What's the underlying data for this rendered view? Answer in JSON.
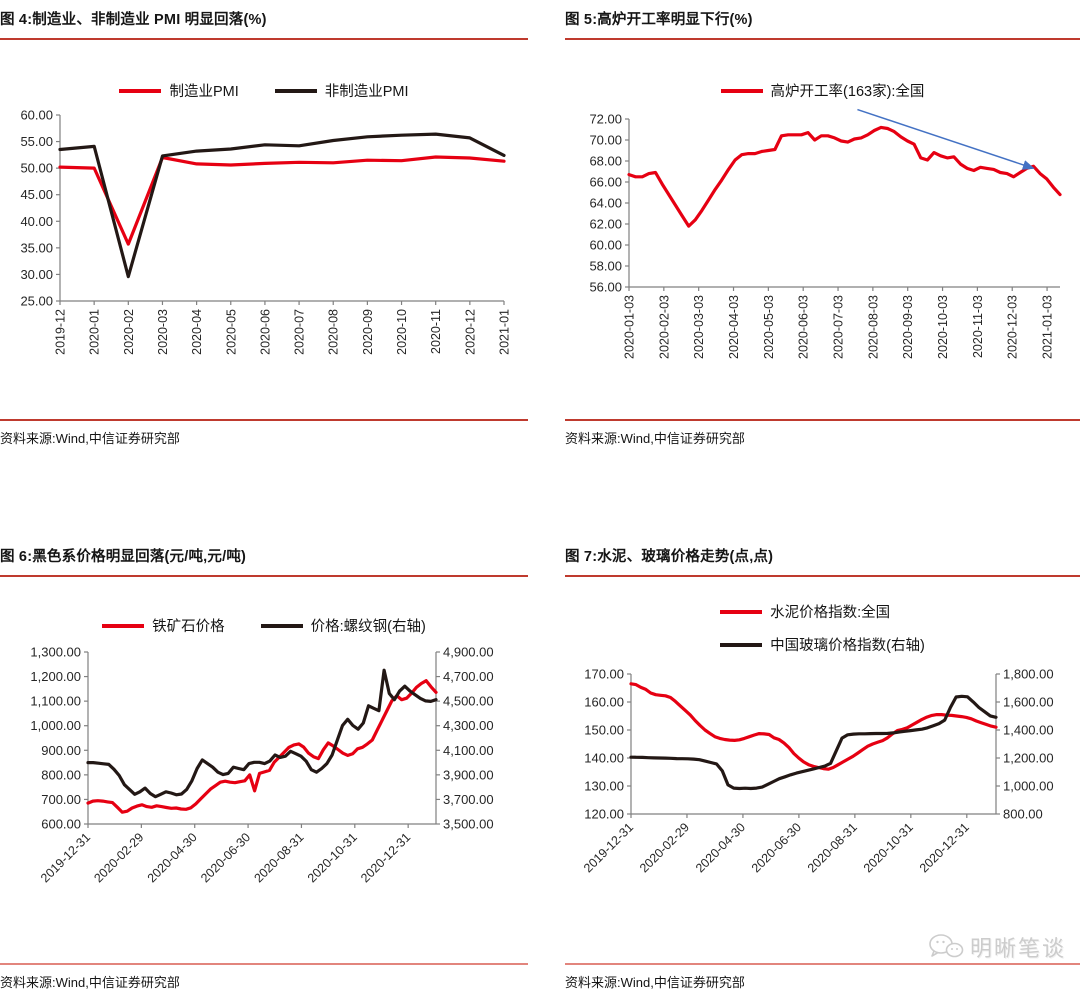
{
  "watermark": {
    "text": "明晰笔谈",
    "icon": "wechat-icon"
  },
  "chart_data": [
    {
      "figure_label": "图 4",
      "title": "图 4:制造业、非制造业 PMI 明显回落(%)",
      "source": "资料来源:Wind,中信证券研究部",
      "type": "line",
      "legend_position": "top-center",
      "grid": false,
      "y_axis": {
        "range": [
          25,
          60
        ],
        "ticks": [
          "60.00",
          "55.00",
          "50.00",
          "45.00",
          "40.00",
          "35.00",
          "30.00",
          "25.00"
        ]
      },
      "x_labels": [
        "2019-12",
        "2020-01",
        "2020-02",
        "2020-03",
        "2020-04",
        "2020-05",
        "2020-06",
        "2020-07",
        "2020-08",
        "2020-09",
        "2020-10",
        "2020-11",
        "2020-12",
        "2021-01"
      ],
      "series": [
        {
          "name": "制造业PMI",
          "color": "#e60012",
          "axis": "left",
          "values": [
            50.2,
            50.0,
            35.7,
            52.0,
            50.8,
            50.6,
            50.9,
            51.1,
            51.0,
            51.5,
            51.4,
            52.1,
            51.9,
            51.3
          ]
        },
        {
          "name": "非制造业PMI",
          "color": "#231815",
          "axis": "left",
          "values": [
            53.5,
            54.1,
            29.6,
            52.3,
            53.2,
            53.6,
            54.4,
            54.2,
            55.2,
            55.9,
            56.2,
            56.4,
            55.7,
            52.4
          ]
        }
      ]
    },
    {
      "figure_label": "图 5",
      "title": "图 5:高炉开工率明显下行(%)",
      "source": "资料来源:Wind,中信证券研究部",
      "type": "line",
      "legend_position": "top-center",
      "grid": false,
      "y_axis": {
        "range": [
          56,
          72
        ],
        "ticks": [
          "72.00",
          "70.00",
          "68.00",
          "66.00",
          "64.00",
          "62.00",
          "60.00",
          "58.00",
          "56.00"
        ]
      },
      "x_labels": [
        "2020-01-03",
        "2020-02-03",
        "2020-03-03",
        "2020-04-03",
        "2020-05-03",
        "2020-06-03",
        "2020-07-03",
        "2020-08-03",
        "2020-09-03",
        "2020-10-03",
        "2020-11-03",
        "2020-12-03",
        "2021-01-03"
      ],
      "series": [
        {
          "name": "高炉开工率(163家):全国",
          "color": "#e60012",
          "axis": "left",
          "values": [
            66.7,
            66.5,
            66.5,
            66.8,
            66.9,
            65.8,
            64.8,
            63.8,
            62.8,
            61.8,
            62.4,
            63.3,
            64.3,
            65.3,
            66.2,
            67.2,
            68.1,
            68.6,
            68.7,
            68.7,
            68.9,
            69.0,
            69.1,
            70.4,
            70.5,
            70.5,
            70.5,
            70.7,
            70.0,
            70.4,
            70.4,
            70.2,
            69.9,
            69.8,
            70.1,
            70.2,
            70.5,
            70.9,
            71.2,
            71.1,
            70.8,
            70.3,
            69.9,
            69.6,
            68.3,
            68.1,
            68.8,
            68.5,
            68.3,
            68.4,
            67.7,
            67.3,
            67.1,
            67.4,
            67.3,
            67.2,
            66.9,
            66.8,
            66.5,
            66.9,
            67.3,
            67.5,
            66.8,
            66.3,
            65.5,
            64.8
          ]
        }
      ],
      "annotation_arrow": {
        "x1": 0.53,
        "y1": 72.9,
        "x2": 0.935,
        "y2": 67.35,
        "color": "#4472c4"
      }
    },
    {
      "figure_label": "图 6",
      "title": "图 6:黑色系价格明显回落(元/吨,元/吨)",
      "source": "资料来源:Wind,中信证券研究部",
      "type": "line",
      "legend_position": "top-center",
      "grid": false,
      "y_axis": {
        "range": [
          600,
          1300
        ],
        "ticks": [
          "1,300.00",
          "1,200.00",
          "1,100.00",
          "1,000.00",
          "900.00",
          "800.00",
          "700.00",
          "600.00"
        ]
      },
      "y_axis2": {
        "range": [
          3500,
          4900
        ],
        "ticks": [
          "4,900.00",
          "4,700.00",
          "4,500.00",
          "4,300.00",
          "4,100.00",
          "3,900.00",
          "3,700.00",
          "3,500.00"
        ]
      },
      "x_labels": [
        "2019-12-31",
        "2020-02-29",
        "2020-04-30",
        "2020-06-30",
        "2020-08-31",
        "2020-10-31",
        "2020-12-31"
      ],
      "series": [
        {
          "name": "铁矿石价格",
          "color": "#e60012",
          "axis": "left",
          "values": [
            685,
            693,
            695,
            693,
            690,
            687,
            668,
            648,
            652,
            665,
            673,
            678,
            671,
            668,
            674,
            671,
            667,
            664,
            665,
            661,
            660,
            666,
            682,
            702,
            722,
            742,
            756,
            770,
            774,
            770,
            768,
            772,
            776,
            800,
            735,
            806,
            812,
            818,
            852,
            872,
            892,
            912,
            922,
            926,
            913,
            888,
            874,
            866,
            902,
            930,
            918,
            903,
            888,
            879,
            886,
            906,
            912,
            926,
            942,
            982,
            1022,
            1062,
            1102,
            1122,
            1106,
            1112,
            1132,
            1156,
            1172,
            1183,
            1158,
            1136
          ]
        },
        {
          "name": "价格:螺纹钢(右轴)",
          "color": "#231815",
          "axis": "right",
          "values": [
            4000,
            4000,
            3995,
            3990,
            3985,
            3945,
            3895,
            3820,
            3780,
            3742,
            3762,
            3792,
            3748,
            3722,
            3742,
            3762,
            3752,
            3738,
            3744,
            3782,
            3852,
            3952,
            4022,
            3992,
            3962,
            3922,
            3902,
            3912,
            3962,
            3952,
            3942,
            3992,
            4002,
            4002,
            3992,
            4012,
            4062,
            4042,
            4052,
            4092,
            4072,
            4052,
            4012,
            3942,
            3922,
            3952,
            3992,
            4062,
            4182,
            4302,
            4352,
            4302,
            4272,
            4322,
            4462,
            4442,
            4422,
            4752,
            4562,
            4512,
            4582,
            4622,
            4582,
            4552,
            4522,
            4502,
            4498,
            4512
          ]
        }
      ]
    },
    {
      "figure_label": "图 7",
      "title": "图 7:水泥、玻璃价格走势(点,点)",
      "source": "资料来源:Wind,中信证券研究部",
      "type": "line",
      "legend_position": "top-center-stacked",
      "grid": false,
      "y_axis": {
        "range": [
          120,
          170
        ],
        "ticks": [
          "170.00",
          "160.00",
          "150.00",
          "140.00",
          "130.00",
          "120.00"
        ]
      },
      "y_axis2": {
        "range": [
          800,
          1800
        ],
        "ticks": [
          "1,800.00",
          "1,600.00",
          "1,400.00",
          "1,200.00",
          "1,000.00",
          "800.00"
        ]
      },
      "x_labels": [
        "2019-12-31",
        "2020-02-29",
        "2020-04-30",
        "2020-06-30",
        "2020-08-31",
        "2020-10-31",
        "2020-12-31"
      ],
      "series": [
        {
          "name": "水泥价格指数:全国",
          "color": "#e60012",
          "axis": "left",
          "values": [
            166.5,
            166.2,
            165.2,
            164.5,
            163.2,
            162.6,
            162.4,
            162.2,
            161.6,
            160.2,
            158.6,
            157.0,
            155.4,
            153.4,
            151.6,
            150.0,
            148.8,
            147.6,
            147.0,
            146.6,
            146.4,
            146.3,
            146.5,
            147.0,
            147.6,
            148.2,
            148.7,
            148.6,
            148.4,
            147.2,
            146.6,
            145.4,
            143.8,
            141.6,
            140.0,
            138.6,
            137.6,
            137.0,
            136.6,
            136.2,
            136.0,
            136.6,
            137.6,
            138.6,
            139.6,
            140.6,
            141.8,
            143.0,
            144.2,
            145.0,
            145.6,
            146.2,
            147.2,
            148.6,
            149.8,
            150.2,
            150.8,
            151.8,
            152.8,
            153.8,
            154.6,
            155.2,
            155.5,
            155.5,
            155.3,
            155.2,
            155.0,
            154.8,
            154.5,
            154.0,
            153.2,
            152.6,
            152.0,
            151.4,
            151.0
          ]
        },
        {
          "name": "中国玻璃价格指数(右轴)",
          "color": "#231815",
          "axis": "right",
          "values": [
            1206,
            1205,
            1204,
            1202,
            1201,
            1200,
            1199,
            1198,
            1196,
            1195,
            1194,
            1192,
            1188,
            1178,
            1168,
            1158,
            1108,
            1008,
            985,
            982,
            984,
            982,
            985,
            992,
            1012,
            1032,
            1052,
            1066,
            1080,
            1092,
            1102,
            1112,
            1122,
            1132,
            1142,
            1162,
            1252,
            1342,
            1366,
            1371,
            1373,
            1373,
            1374,
            1375,
            1375,
            1376,
            1379,
            1386,
            1391,
            1396,
            1401,
            1406,
            1416,
            1431,
            1446,
            1471,
            1561,
            1636,
            1641,
            1637,
            1601,
            1561,
            1531,
            1501,
            1491
          ]
        }
      ]
    }
  ]
}
